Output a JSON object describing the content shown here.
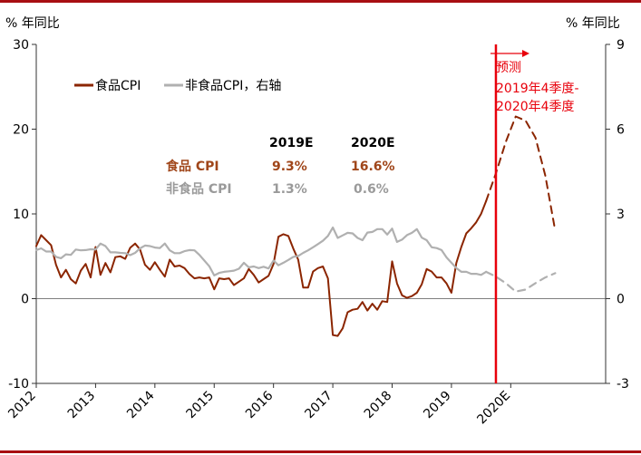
{
  "chart_data": {
    "type": "line",
    "left_axis": {
      "unit_label": "% 年同比",
      "ylim": [
        -10,
        30
      ],
      "ticks": [
        -10,
        0,
        10,
        20,
        30
      ]
    },
    "right_axis": {
      "unit_label": "% 年同比",
      "ylim": [
        -3,
        9
      ],
      "ticks": [
        -3,
        0,
        3,
        6,
        9
      ]
    },
    "x_ticks": [
      "2012",
      "2013",
      "2014",
      "2015",
      "2016",
      "2017",
      "2018",
      "2019",
      "2020E"
    ],
    "x_range": [
      2012.0,
      2021.6
    ],
    "legend": {
      "position": "top-left",
      "items": [
        {
          "label": "食品CPI",
          "color": "#8b2500",
          "style": "solid"
        },
        {
          "label": "非食品CPI，右轴",
          "color": "#b0b0b0",
          "style": "solid"
        }
      ]
    },
    "forecast_line": {
      "x": 2019.75,
      "color": "#e8000b"
    },
    "forecast_annotation": {
      "arrow_label": "预测",
      "lines": [
        "2019年4季度-",
        "2020年4季度"
      ],
      "color": "#e8000b"
    },
    "forecast_table": {
      "headers": [
        "",
        "2019E",
        "2020E"
      ],
      "rows": [
        {
          "label": "食品 CPI",
          "values": [
            "9.3%",
            "16.6%"
          ],
          "color": "#a0461a"
        },
        {
          "label": "非食品 CPI",
          "values": [
            "1.3%",
            "0.6%"
          ],
          "color": "#9a9a9a"
        }
      ]
    },
    "series": [
      {
        "name": "食品CPI",
        "axis": "left",
        "color": "#8b2500",
        "style": "solid",
        "points": [
          [
            2012.0,
            6.2
          ],
          [
            2012.083,
            7.5
          ],
          [
            2012.167,
            6.9
          ],
          [
            2012.25,
            6.3
          ],
          [
            2012.333,
            4.0
          ],
          [
            2012.417,
            2.5
          ],
          [
            2012.5,
            3.4
          ],
          [
            2012.583,
            2.3
          ],
          [
            2012.667,
            1.8
          ],
          [
            2012.75,
            3.3
          ],
          [
            2012.833,
            4.1
          ],
          [
            2012.917,
            2.5
          ],
          [
            2013.0,
            6.1
          ],
          [
            2013.083,
            2.8
          ],
          [
            2013.167,
            4.2
          ],
          [
            2013.25,
            3.1
          ],
          [
            2013.333,
            4.9
          ],
          [
            2013.417,
            5.0
          ],
          [
            2013.5,
            4.7
          ],
          [
            2013.583,
            6.0
          ],
          [
            2013.667,
            6.5
          ],
          [
            2013.75,
            5.8
          ],
          [
            2013.833,
            4.0
          ],
          [
            2013.917,
            3.4
          ],
          [
            2014.0,
            4.3
          ],
          [
            2014.083,
            3.4
          ],
          [
            2014.167,
            2.6
          ],
          [
            2014.25,
            4.6
          ],
          [
            2014.333,
            3.8
          ],
          [
            2014.417,
            3.9
          ],
          [
            2014.5,
            3.6
          ],
          [
            2014.583,
            2.9
          ],
          [
            2014.667,
            2.4
          ],
          [
            2014.75,
            2.5
          ],
          [
            2014.833,
            2.4
          ],
          [
            2014.917,
            2.5
          ],
          [
            2015.0,
            1.1
          ],
          [
            2015.083,
            2.4
          ],
          [
            2015.167,
            2.3
          ],
          [
            2015.25,
            2.4
          ],
          [
            2015.333,
            1.6
          ],
          [
            2015.417,
            2.0
          ],
          [
            2015.5,
            2.4
          ],
          [
            2015.583,
            3.5
          ],
          [
            2015.667,
            2.8
          ],
          [
            2015.75,
            1.9
          ],
          [
            2015.833,
            2.3
          ],
          [
            2015.917,
            2.7
          ],
          [
            2016.0,
            4.1
          ],
          [
            2016.083,
            7.3
          ],
          [
            2016.167,
            7.6
          ],
          [
            2016.25,
            7.4
          ],
          [
            2016.333,
            5.9
          ],
          [
            2016.417,
            4.6
          ],
          [
            2016.5,
            1.3
          ],
          [
            2016.583,
            1.3
          ],
          [
            2016.667,
            3.2
          ],
          [
            2016.75,
            3.6
          ],
          [
            2016.833,
            3.8
          ],
          [
            2016.917,
            2.4
          ],
          [
            2017.0,
            -4.3
          ],
          [
            2017.083,
            -4.4
          ],
          [
            2017.167,
            -3.5
          ],
          [
            2017.25,
            -1.6
          ],
          [
            2017.333,
            -1.3
          ],
          [
            2017.417,
            -1.2
          ],
          [
            2017.5,
            -0.4
          ],
          [
            2017.583,
            -1.4
          ],
          [
            2017.667,
            -0.6
          ],
          [
            2017.75,
            -1.3
          ],
          [
            2017.833,
            -0.3
          ],
          [
            2017.917,
            -0.4
          ],
          [
            2018.0,
            4.4
          ],
          [
            2018.083,
            1.8
          ],
          [
            2018.167,
            0.4
          ],
          [
            2018.25,
            0.1
          ],
          [
            2018.333,
            0.3
          ],
          [
            2018.417,
            0.7
          ],
          [
            2018.5,
            1.7
          ],
          [
            2018.583,
            3.5
          ],
          [
            2018.667,
            3.2
          ],
          [
            2018.75,
            2.5
          ],
          [
            2018.833,
            2.5
          ],
          [
            2018.917,
            1.8
          ],
          [
            2019.0,
            0.7
          ],
          [
            2019.083,
            4.2
          ],
          [
            2019.167,
            6.1
          ],
          [
            2019.25,
            7.7
          ],
          [
            2019.333,
            8.3
          ],
          [
            2019.417,
            9.0
          ],
          [
            2019.5,
            10.0
          ],
          [
            2019.583,
            11.5
          ]
        ]
      },
      {
        "name": "食品CPI",
        "axis": "left",
        "color": "#8b2500",
        "style": "dashed",
        "points": [
          [
            2019.583,
            11.5
          ],
          [
            2019.75,
            14.8
          ],
          [
            2019.917,
            18.5
          ],
          [
            2020.083,
            21.5
          ],
          [
            2020.25,
            21.0
          ],
          [
            2020.417,
            19.0
          ],
          [
            2020.583,
            14.5
          ],
          [
            2020.75,
            8.0
          ]
        ]
      },
      {
        "name": "非食品CPI，右轴",
        "axis": "right",
        "color": "#b0b0b0",
        "style": "solid",
        "points": [
          [
            2012.0,
            1.72
          ],
          [
            2012.083,
            1.78
          ],
          [
            2012.167,
            1.67
          ],
          [
            2012.25,
            1.67
          ],
          [
            2012.333,
            1.48
          ],
          [
            2012.417,
            1.43
          ],
          [
            2012.5,
            1.57
          ],
          [
            2012.583,
            1.55
          ],
          [
            2012.667,
            1.74
          ],
          [
            2012.75,
            1.71
          ],
          [
            2012.833,
            1.72
          ],
          [
            2012.917,
            1.75
          ],
          [
            2013.0,
            1.74
          ],
          [
            2013.083,
            1.95
          ],
          [
            2013.167,
            1.86
          ],
          [
            2013.25,
            1.64
          ],
          [
            2013.333,
            1.64
          ],
          [
            2013.417,
            1.62
          ],
          [
            2013.5,
            1.61
          ],
          [
            2013.583,
            1.54
          ],
          [
            2013.667,
            1.62
          ],
          [
            2013.75,
            1.78
          ],
          [
            2013.833,
            1.88
          ],
          [
            2013.917,
            1.86
          ],
          [
            2014.0,
            1.81
          ],
          [
            2014.083,
            1.79
          ],
          [
            2014.167,
            1.95
          ],
          [
            2014.25,
            1.71
          ],
          [
            2014.333,
            1.61
          ],
          [
            2014.417,
            1.61
          ],
          [
            2014.5,
            1.68
          ],
          [
            2014.583,
            1.72
          ],
          [
            2014.667,
            1.71
          ],
          [
            2014.75,
            1.55
          ],
          [
            2014.833,
            1.35
          ],
          [
            2014.917,
            1.15
          ],
          [
            2015.0,
            0.82
          ],
          [
            2015.083,
            0.91
          ],
          [
            2015.167,
            0.95
          ],
          [
            2015.25,
            0.97
          ],
          [
            2015.333,
            0.99
          ],
          [
            2015.417,
            1.06
          ],
          [
            2015.5,
            1.27
          ],
          [
            2015.583,
            1.11
          ],
          [
            2015.667,
            1.14
          ],
          [
            2015.75,
            1.08
          ],
          [
            2015.833,
            1.13
          ],
          [
            2015.917,
            1.07
          ],
          [
            2016.0,
            1.35
          ],
          [
            2016.083,
            1.18
          ],
          [
            2016.167,
            1.27
          ],
          [
            2016.25,
            1.37
          ],
          [
            2016.333,
            1.48
          ],
          [
            2016.417,
            1.51
          ],
          [
            2016.5,
            1.62
          ],
          [
            2016.583,
            1.71
          ],
          [
            2016.667,
            1.82
          ],
          [
            2016.75,
            1.93
          ],
          [
            2016.833,
            2.05
          ],
          [
            2016.917,
            2.22
          ],
          [
            2017.0,
            2.52
          ],
          [
            2017.083,
            2.15
          ],
          [
            2017.167,
            2.24
          ],
          [
            2017.25,
            2.33
          ],
          [
            2017.333,
            2.31
          ],
          [
            2017.417,
            2.15
          ],
          [
            2017.5,
            2.07
          ],
          [
            2017.583,
            2.34
          ],
          [
            2017.667,
            2.36
          ],
          [
            2017.75,
            2.46
          ],
          [
            2017.833,
            2.46
          ],
          [
            2017.917,
            2.27
          ],
          [
            2018.0,
            2.48
          ],
          [
            2018.083,
            2.01
          ],
          [
            2018.167,
            2.09
          ],
          [
            2018.25,
            2.25
          ],
          [
            2018.333,
            2.33
          ],
          [
            2018.417,
            2.46
          ],
          [
            2018.5,
            2.16
          ],
          [
            2018.583,
            2.07
          ],
          [
            2018.667,
            1.82
          ],
          [
            2018.75,
            1.79
          ],
          [
            2018.833,
            1.72
          ],
          [
            2018.917,
            1.46
          ],
          [
            2019.0,
            1.27
          ],
          [
            2019.083,
            1.08
          ],
          [
            2019.167,
            0.95
          ],
          [
            2019.25,
            0.95
          ],
          [
            2019.333,
            0.88
          ],
          [
            2019.417,
            0.88
          ],
          [
            2019.5,
            0.84
          ],
          [
            2019.583,
            0.95
          ]
        ]
      },
      {
        "name": "非食品CPI，右轴",
        "axis": "right",
        "color": "#b0b0b0",
        "style": "dashed",
        "points": [
          [
            2019.583,
            0.95
          ],
          [
            2019.75,
            0.78
          ],
          [
            2019.917,
            0.55
          ],
          [
            2020.083,
            0.25
          ],
          [
            2020.25,
            0.32
          ],
          [
            2020.417,
            0.55
          ],
          [
            2020.583,
            0.75
          ],
          [
            2020.75,
            0.9
          ]
        ]
      }
    ]
  }
}
